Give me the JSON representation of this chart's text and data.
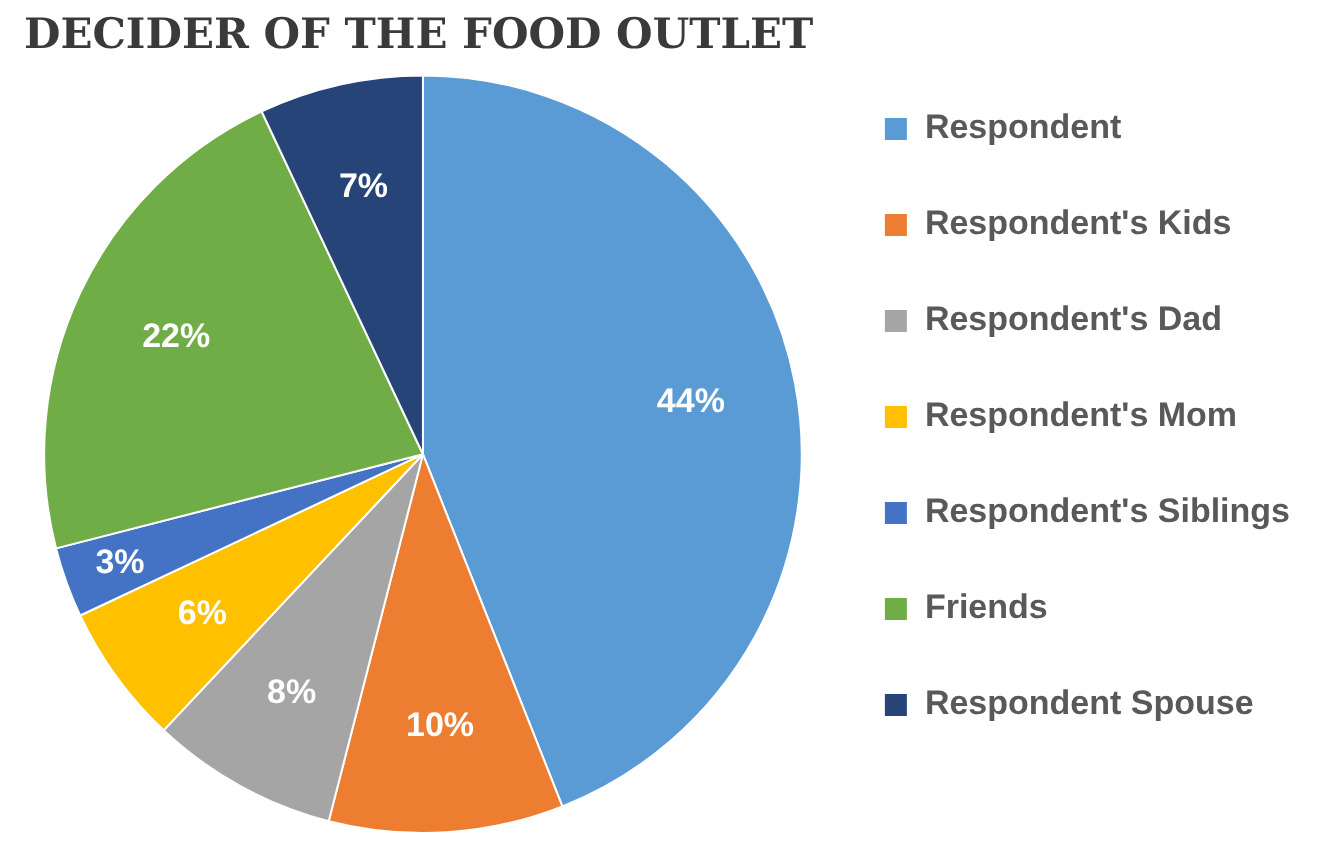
{
  "chart_data": {
    "type": "pie",
    "title": "DECIDER OF THE FOOD OUTLET",
    "categories": [
      "Respondent",
      "Respondent's Kids",
      "Respondent's Dad",
      "Respondent's Mom",
      "Respondent's Siblings",
      "Friends",
      "Respondent Spouse"
    ],
    "values": [
      44,
      10,
      8,
      6,
      3,
      22,
      7
    ],
    "colors": [
      "#5b9bd5",
      "#ed7d31",
      "#a5a5a5",
      "#ffc000",
      "#4472c4",
      "#70ad47",
      "#264478"
    ],
    "value_labels": [
      "44%",
      "10%",
      "8%",
      "6%",
      "3%",
      "22%",
      "7%"
    ],
    "legend": "right"
  }
}
